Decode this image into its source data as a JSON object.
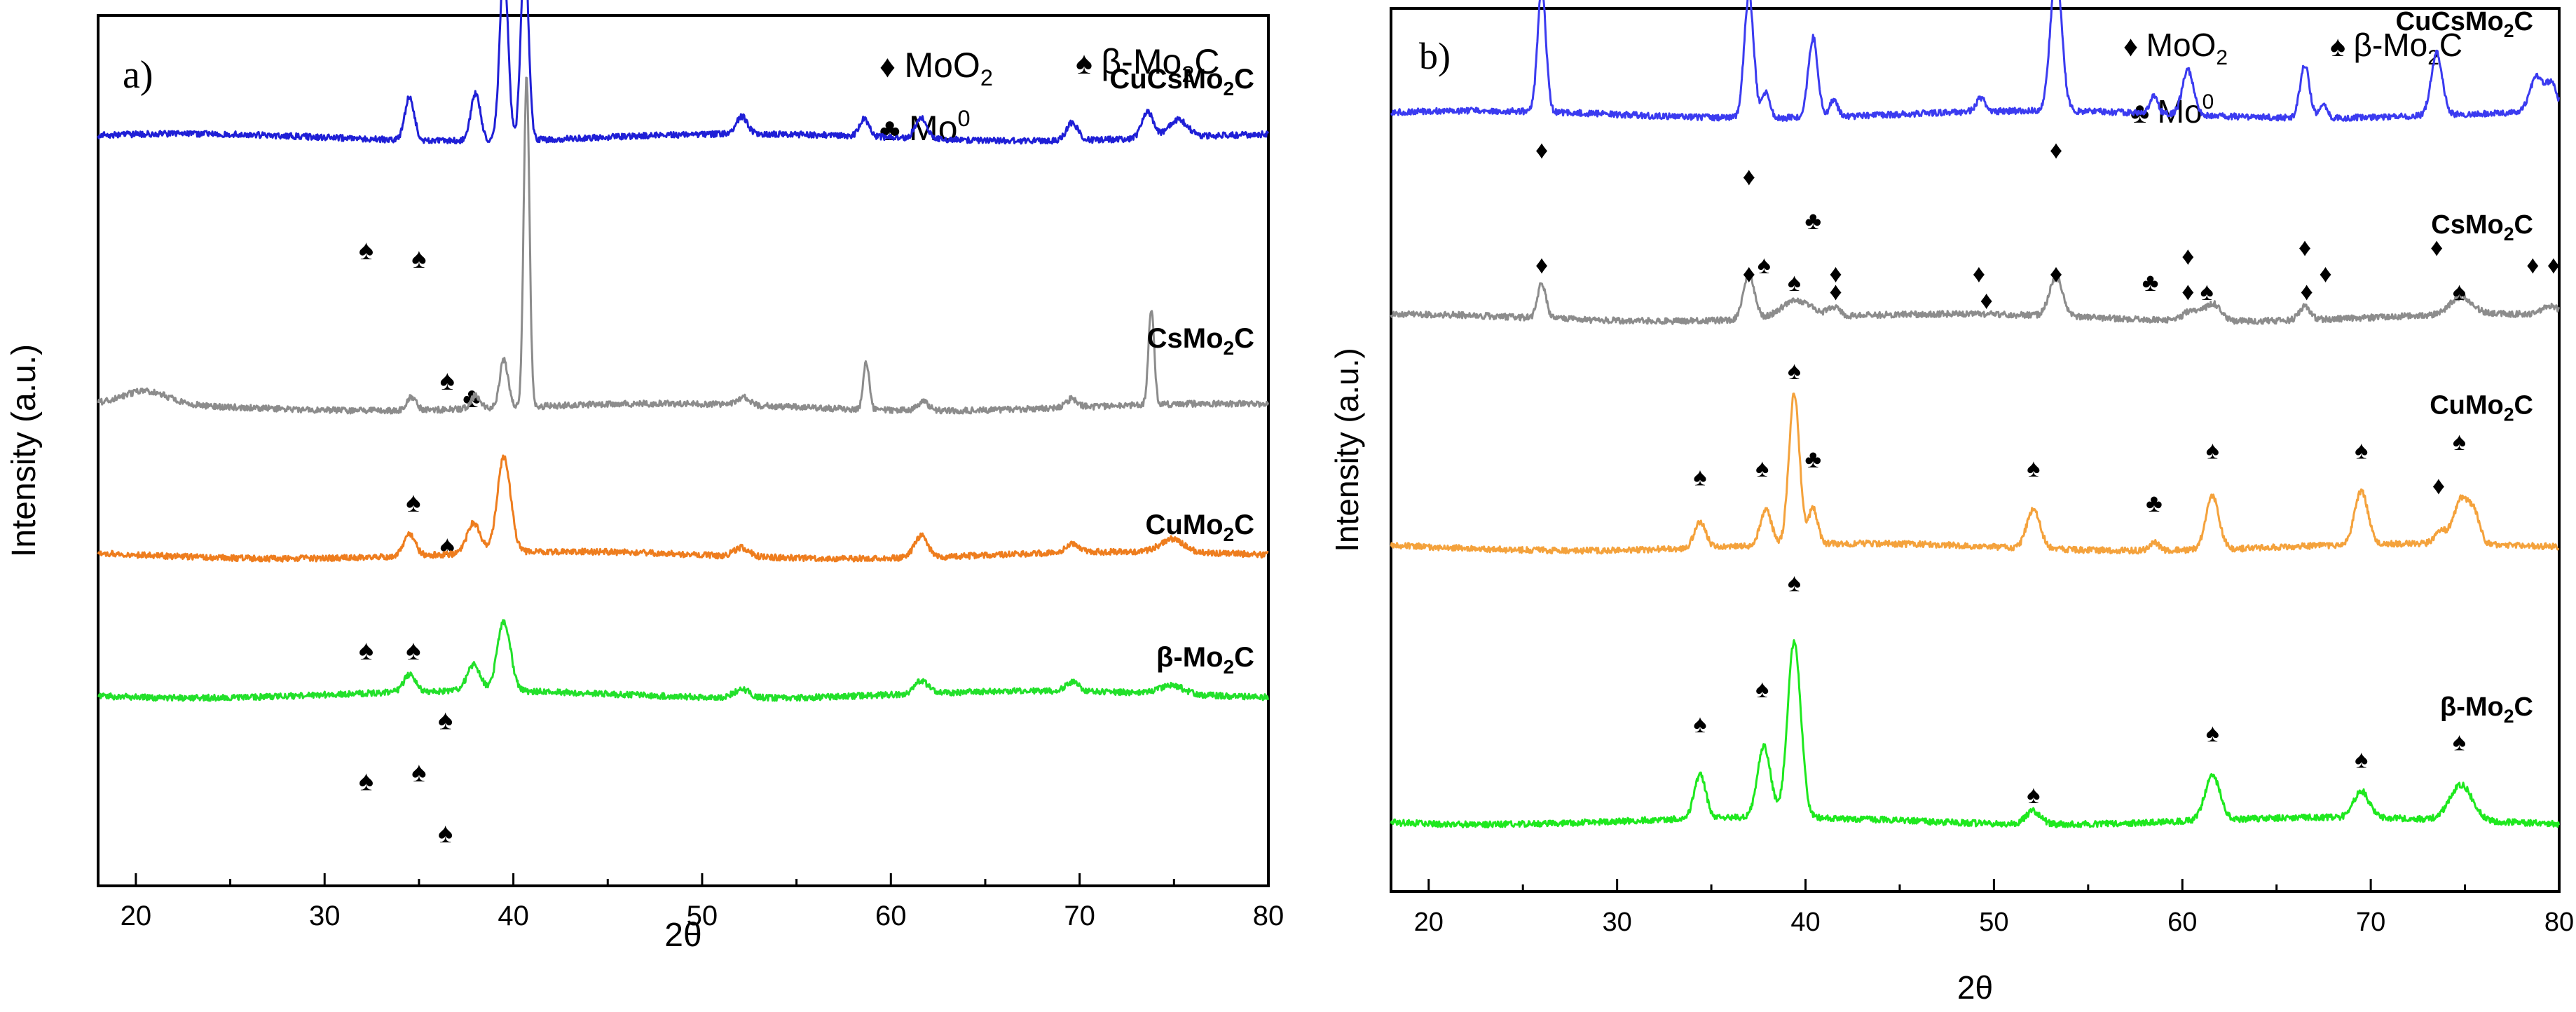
{
  "chart_data": [
    {
      "panel": "a)",
      "type": "line",
      "xlabel": "2θ",
      "ylabel": "Intensity (a.u.)",
      "xlim": [
        18,
        80
      ],
      "xticks": [
        20,
        30,
        40,
        50,
        60,
        70,
        80
      ],
      "legend": [
        {
          "symbol": "♦",
          "base": "MoO",
          "sub": "2",
          "sup": ""
        },
        {
          "symbol": "♠",
          "base": "β-Mo",
          "sub": "2",
          "tail": "C"
        },
        {
          "symbol": "♣",
          "base": "Mo",
          "sub": "",
          "sup": "0"
        }
      ],
      "series": [
        {
          "name": "CuCsMo2C",
          "label_base": "CuCsMo",
          "label_sub": "2",
          "label_tail": "C",
          "color": "#1f1fd6",
          "baseline": 0.14,
          "peaks": [
            [
              34.5,
              0.05,
              0.25
            ],
            [
              38.0,
              0.055,
              0.25
            ],
            [
              39.5,
              0.2,
              0.22
            ],
            [
              40.6,
              0.22,
              0.2
            ],
            [
              52.1,
              0.02,
              0.3
            ],
            [
              58.6,
              0.02,
              0.25
            ],
            [
              61.6,
              0.025,
              0.3
            ],
            [
              69.6,
              0.02,
              0.3
            ],
            [
              73.6,
              0.03,
              0.3
            ],
            [
              75.2,
              0.02,
              0.5
            ]
          ],
          "markers": [
            {
              "x": 32.2,
              "symbol": "♠",
              "level": 0.28
            },
            {
              "x": 35.0,
              "symbol": "♠",
              "level": 0.29
            },
            {
              "x": 36.5,
              "symbol": "♠",
              "level": 0.43
            },
            {
              "x": 37.8,
              "symbol": "♣",
              "level": 0.45
            }
          ]
        },
        {
          "name": "CsMo2C",
          "label_base": "CsMo",
          "label_sub": "2",
          "label_tail": "C",
          "color": "#8c8c8c",
          "baseline": 0.45,
          "peaks": [
            [
              20.5,
              0.015,
              1.2
            ],
            [
              34.6,
              0.015,
              0.25
            ],
            [
              38.0,
              0.015,
              0.25
            ],
            [
              39.5,
              0.055,
              0.22
            ],
            [
              40.7,
              0.38,
              0.15
            ],
            [
              52.2,
              0.01,
              0.3
            ],
            [
              58.7,
              0.055,
              0.15
            ],
            [
              61.7,
              0.01,
              0.3
            ],
            [
              69.6,
              0.01,
              0.3
            ],
            [
              73.8,
              0.11,
              0.15
            ]
          ],
          "markers": [
            {
              "x": 34.7,
              "symbol": "♠",
              "level": 0.57
            },
            {
              "x": 36.5,
              "symbol": "♠",
              "level": 0.62
            }
          ]
        },
        {
          "name": "CuMo2C",
          "label_base": "CuMo",
          "label_sub": "2",
          "label_tail": "C",
          "color": "#ee7d1e",
          "baseline": 0.62,
          "peaks": [
            [
              34.5,
              0.025,
              0.3
            ],
            [
              37.9,
              0.035,
              0.35
            ],
            [
              39.5,
              0.11,
              0.35
            ],
            [
              52.1,
              0.01,
              0.4
            ],
            [
              61.6,
              0.025,
              0.35
            ],
            [
              69.6,
              0.01,
              0.35
            ],
            [
              74.9,
              0.015,
              0.6
            ]
          ],
          "markers": [
            {
              "x": 32.2,
              "symbol": "♠",
              "level": 0.74
            },
            {
              "x": 34.7,
              "symbol": "♠",
              "level": 0.74
            },
            {
              "x": 36.4,
              "symbol": "♠",
              "level": 0.82
            }
          ]
        },
        {
          "name": "β-Mo2C",
          "label_base": "β-Mo",
          "label_sub": "2",
          "label_tail": "C",
          "color": "#22e02a",
          "baseline": 0.78,
          "peaks": [
            [
              34.5,
              0.02,
              0.3
            ],
            [
              37.9,
              0.03,
              0.35
            ],
            [
              39.5,
              0.08,
              0.35
            ],
            [
              52.1,
              0.01,
              0.4
            ],
            [
              61.6,
              0.015,
              0.35
            ],
            [
              69.6,
              0.01,
              0.35
            ],
            [
              74.9,
              0.01,
              0.6
            ]
          ],
          "markers": [
            {
              "x": 32.2,
              "symbol": "♠",
              "level": 0.89
            },
            {
              "x": 35.0,
              "symbol": "♠",
              "level": 0.88
            },
            {
              "x": 36.4,
              "symbol": "♠",
              "level": 0.95
            }
          ]
        }
      ]
    },
    {
      "panel": "b)",
      "type": "line",
      "xlabel": "2θ",
      "ylabel": "Intensity (a.u.)",
      "xlim": [
        18,
        80
      ],
      "xticks": [
        20,
        30,
        40,
        50,
        60,
        70,
        80
      ],
      "legend": [
        {
          "symbol": "♦",
          "base": "MoO",
          "sub": "2",
          "sup": ""
        },
        {
          "symbol": "♠",
          "base": "β-Mo",
          "sub": "2",
          "tail": "C"
        },
        {
          "symbol": "♣",
          "base": "Mo",
          "sub": "",
          "sup": "0"
        }
      ],
      "series": [
        {
          "name": "CuCsMo2C",
          "label_base": "CuCsMo",
          "label_sub": "2",
          "label_tail": "C",
          "color": "#3b3bf0",
          "baseline": 0.12,
          "peaks": [
            [
              26.0,
              0.14,
              0.22
            ],
            [
              37.0,
              0.14,
              0.25
            ],
            [
              37.9,
              0.03,
              0.2
            ],
            [
              40.4,
              0.09,
              0.25
            ],
            [
              41.5,
              0.02,
              0.2
            ],
            [
              49.3,
              0.015,
              0.25
            ],
            [
              53.3,
              0.16,
              0.3
            ],
            [
              58.5,
              0.02,
              0.2
            ],
            [
              60.3,
              0.05,
              0.3
            ],
            [
              66.5,
              0.06,
              0.25
            ],
            [
              67.5,
              0.015,
              0.2
            ],
            [
              73.5,
              0.07,
              0.3
            ],
            [
              78.8,
              0.04,
              0.35
            ],
            [
              79.6,
              0.03,
              0.3
            ]
          ],
          "markers": [
            {
              "x": 26.0,
              "symbol": "♦",
              "level": 0.17
            },
            {
              "x": 37.0,
              "symbol": "♦",
              "level": 0.2
            },
            {
              "x": 37.8,
              "symbol": "♠",
              "level": 0.3
            },
            {
              "x": 40.4,
              "symbol": "♣",
              "level": 0.25
            },
            {
              "x": 41.6,
              "symbol": "♦",
              "level": 0.31
            },
            {
              "x": 49.2,
              "symbol": "♦",
              "level": 0.31
            },
            {
              "x": 53.3,
              "symbol": "♦",
              "level": 0.17
            },
            {
              "x": 58.3,
              "symbol": "♣",
              "level": 0.32
            },
            {
              "x": 60.3,
              "symbol": "♦",
              "level": 0.29
            },
            {
              "x": 66.5,
              "symbol": "♦",
              "level": 0.28
            },
            {
              "x": 67.6,
              "symbol": "♦",
              "level": 0.31
            },
            {
              "x": 73.5,
              "symbol": "♦",
              "level": 0.28
            },
            {
              "x": 78.6,
              "symbol": "♦",
              "level": 0.3
            },
            {
              "x": 79.7,
              "symbol": "♦",
              "level": 0.3
            }
          ]
        },
        {
          "name": "CsMo2C",
          "label_base": "CsMo",
          "label_sub": "2",
          "label_tail": "C",
          "color": "#8c8c8c",
          "baseline": 0.35,
          "peaks": [
            [
              26.0,
              0.04,
              0.22
            ],
            [
              37.0,
              0.05,
              0.3
            ],
            [
              39.5,
              0.02,
              0.8
            ],
            [
              41.5,
              0.01,
              0.3
            ],
            [
              53.3,
              0.045,
              0.35
            ],
            [
              60.5,
              0.012,
              0.4
            ],
            [
              61.6,
              0.02,
              0.4
            ],
            [
              66.5,
              0.015,
              0.3
            ],
            [
              74.8,
              0.02,
              0.6
            ],
            [
              79.5,
              0.01,
              0.4
            ]
          ],
          "markers": [
            {
              "x": 26.0,
              "symbol": "♦",
              "level": 0.3
            },
            {
              "x": 37.0,
              "symbol": "♦",
              "level": 0.31
            },
            {
              "x": 39.4,
              "symbol": "♠",
              "level": 0.32
            },
            {
              "x": 41.6,
              "symbol": "♦",
              "level": 0.33
            },
            {
              "x": 49.6,
              "symbol": "♦",
              "level": 0.34
            },
            {
              "x": 53.3,
              "symbol": "♦",
              "level": 0.31
            },
            {
              "x": 60.3,
              "symbol": "♦",
              "level": 0.33
            },
            {
              "x": 61.3,
              "symbol": "♠",
              "level": 0.33
            },
            {
              "x": 66.6,
              "symbol": "♦",
              "level": 0.33
            },
            {
              "x": 74.7,
              "symbol": "♠",
              "level": 0.33
            }
          ]
        },
        {
          "name": "CuMo2C",
          "label_base": "CuMo",
          "label_sub": "2",
          "label_tail": "C",
          "color": "#f4a23c",
          "baseline": 0.61,
          "peaks": [
            [
              34.4,
              0.03,
              0.3
            ],
            [
              37.9,
              0.04,
              0.3
            ],
            [
              39.4,
              0.17,
              0.28
            ],
            [
              40.4,
              0.04,
              0.25
            ],
            [
              52.1,
              0.045,
              0.35
            ],
            [
              58.5,
              0.01,
              0.25
            ],
            [
              61.6,
              0.06,
              0.35
            ],
            [
              69.5,
              0.06,
              0.35
            ],
            [
              73.7,
              0.015,
              0.3
            ],
            [
              74.8,
              0.05,
              0.4
            ],
            [
              75.5,
              0.03,
              0.3
            ]
          ],
          "markers": [
            {
              "x": 34.4,
              "symbol": "♠",
              "level": 0.54
            },
            {
              "x": 37.7,
              "symbol": "♠",
              "level": 0.53
            },
            {
              "x": 39.4,
              "symbol": "♠",
              "level": 0.42
            },
            {
              "x": 40.4,
              "symbol": "♣",
              "level": 0.52
            },
            {
              "x": 52.1,
              "symbol": "♠",
              "level": 0.53
            },
            {
              "x": 58.5,
              "symbol": "♣",
              "level": 0.57
            },
            {
              "x": 61.6,
              "symbol": "♠",
              "level": 0.51
            },
            {
              "x": 69.5,
              "symbol": "♠",
              "level": 0.51
            },
            {
              "x": 73.6,
              "symbol": "♦",
              "level": 0.55
            },
            {
              "x": 74.7,
              "symbol": "♠",
              "level": 0.5
            }
          ]
        },
        {
          "name": "β-Mo2C",
          "label_base": "β-Mo",
          "label_sub": "2",
          "label_tail": "C",
          "color": "#1ee81e",
          "baseline": 0.92,
          "peaks": [
            [
              34.4,
              0.05,
              0.3
            ],
            [
              37.8,
              0.08,
              0.35
            ],
            [
              39.4,
              0.2,
              0.35
            ],
            [
              52.1,
              0.015,
              0.4
            ],
            [
              61.6,
              0.05,
              0.4
            ],
            [
              69.5,
              0.03,
              0.4
            ],
            [
              74.8,
              0.04,
              0.6
            ]
          ],
          "markers": [
            {
              "x": 34.4,
              "symbol": "♠",
              "level": 0.82
            },
            {
              "x": 37.7,
              "symbol": "♠",
              "level": 0.78
            },
            {
              "x": 39.4,
              "symbol": "♠",
              "level": 0.66
            },
            {
              "x": 52.1,
              "symbol": "♠",
              "level": 0.9
            },
            {
              "x": 61.6,
              "symbol": "♠",
              "level": 0.83
            },
            {
              "x": 69.5,
              "symbol": "♠",
              "level": 0.86
            },
            {
              "x": 74.7,
              "symbol": "♠",
              "level": 0.84
            }
          ]
        }
      ]
    }
  ]
}
